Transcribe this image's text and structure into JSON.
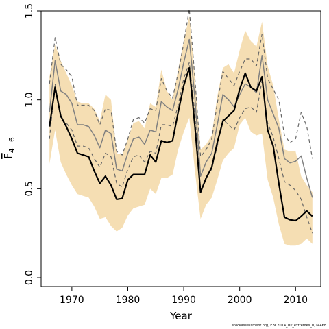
{
  "chart_data": {
    "type": "line",
    "xlabel": "Year",
    "ylabel": "F̄4−6",
    "ylabel_main": "F",
    "ylabel_sub": "4−6",
    "xlim": [
      1964.5,
      2014.5
    ],
    "ylim": [
      -0.05,
      1.5
    ],
    "xticks": [
      1970,
      1980,
      1990,
      2000,
      2010
    ],
    "xtick_labels": [
      "1970",
      "1980",
      "1990",
      "2000",
      "2010"
    ],
    "yticks": [
      0.0,
      0.5,
      1.0,
      1.5
    ],
    "ytick_labels": [
      "0.0",
      "0.5",
      "1.0",
      "1.5"
    ],
    "x": [
      1966,
      1967,
      1968,
      1969,
      1970,
      1971,
      1972,
      1973,
      1974,
      1975,
      1976,
      1977,
      1978,
      1979,
      1980,
      1981,
      1982,
      1983,
      1984,
      1985,
      1986,
      1987,
      1988,
      1989,
      1990,
      1991,
      1992,
      1993,
      1994,
      1995,
      1996,
      1997,
      1998,
      1999,
      2000,
      2001,
      2002,
      2003,
      2004,
      2005,
      2006,
      2007,
      2008,
      2009,
      2010,
      2011,
      2012,
      2013
    ],
    "band": {
      "color": "#f5deb3",
      "lower": [
        0.64,
        0.83,
        0.65,
        0.58,
        0.52,
        0.47,
        0.46,
        0.45,
        0.4,
        0.33,
        0.34,
        0.29,
        0.26,
        0.28,
        0.35,
        0.39,
        0.4,
        0.41,
        0.5,
        0.47,
        0.56,
        0.56,
        0.58,
        0.72,
        0.82,
        0.9,
        0.6,
        0.33,
        0.41,
        0.45,
        0.55,
        0.66,
        0.7,
        0.73,
        0.86,
        0.9,
        0.82,
        0.8,
        0.81,
        0.55,
        0.45,
        0.3,
        0.19,
        0.18,
        0.18,
        0.19,
        0.22,
        0.19
      ],
      "upper": [
        1.13,
        1.31,
        1.22,
        1.15,
        1.08,
        0.99,
        0.98,
        0.98,
        0.95,
        0.88,
        1.03,
        1.0,
        0.7,
        0.69,
        0.78,
        0.87,
        0.88,
        0.84,
        0.98,
        0.96,
        1.17,
        1.05,
        1.0,
        1.17,
        1.33,
        1.47,
        1.12,
        0.72,
        0.75,
        0.8,
        1.02,
        1.18,
        1.2,
        1.15,
        1.28,
        1.39,
        1.33,
        1.3,
        1.44,
        1.19,
        1.08,
        0.89,
        0.72,
        0.71,
        0.71,
        0.57,
        0.52,
        0.48
      ]
    },
    "series": [
      {
        "role": "estimate",
        "color": "#000000",
        "width": 2.2,
        "dash": "none",
        "values": [
          0.85,
          1.07,
          0.91,
          0.85,
          0.78,
          0.7,
          0.69,
          0.68,
          0.6,
          0.53,
          0.57,
          0.52,
          0.44,
          0.445,
          0.55,
          0.58,
          0.58,
          0.58,
          0.69,
          0.65,
          0.77,
          0.76,
          0.77,
          0.93,
          1.08,
          1.18,
          0.85,
          0.48,
          0.56,
          0.62,
          0.76,
          0.88,
          0.91,
          0.94,
          1.06,
          1.15,
          1.07,
          1.05,
          1.13,
          0.83,
          0.74,
          0.53,
          0.34,
          0.325,
          0.32,
          0.345,
          0.375,
          0.345
        ]
      },
      {
        "role": "previous",
        "color": "#808080",
        "width": 1.5,
        "dash": "none",
        "values": [
          0.93,
          1.22,
          1.05,
          1.03,
          0.98,
          0.86,
          0.86,
          0.85,
          0.8,
          0.73,
          0.83,
          0.81,
          0.61,
          0.6,
          0.7,
          0.78,
          0.79,
          0.75,
          0.83,
          0.82,
          0.99,
          0.96,
          0.94,
          1.06,
          1.21,
          1.34,
          1.01,
          0.57,
          0.65,
          0.7,
          0.86,
          1.03,
          1.0,
          0.96,
          1.03,
          1.09,
          1.07,
          1.04,
          1.25,
          1.0,
          0.92,
          0.84,
          0.67,
          0.645,
          0.655,
          0.685,
          0.56,
          0.45
        ]
      },
      {
        "role": "previous-upper",
        "color": "#666666",
        "width": 1.2,
        "dash": "5,4",
        "values": [
          1.09,
          1.35,
          1.2,
          1.17,
          1.13,
          0.97,
          0.97,
          0.97,
          0.94,
          0.86,
          0.95,
          0.94,
          0.71,
          0.69,
          0.78,
          0.89,
          0.9,
          0.87,
          0.95,
          0.94,
          1.12,
          1.05,
          1.01,
          1.15,
          1.32,
          1.51,
          1.12,
          0.68,
          0.72,
          0.78,
          0.98,
          1.16,
          1.12,
          1.08,
          1.16,
          1.23,
          1.23,
          1.19,
          1.37,
          1.12,
          1.06,
          1.0,
          0.8,
          0.76,
          0.78,
          0.93,
          0.85,
          0.67
        ]
      },
      {
        "role": "previous-lower",
        "color": "#666666",
        "width": 1.2,
        "dash": "5,4",
        "values": [
          0.78,
          1.09,
          0.89,
          0.87,
          0.83,
          0.74,
          0.74,
          0.73,
          0.67,
          0.62,
          0.7,
          0.68,
          0.53,
          0.51,
          0.61,
          0.68,
          0.69,
          0.65,
          0.71,
          0.7,
          0.86,
          0.86,
          0.85,
          0.97,
          1.12,
          1.21,
          0.92,
          0.49,
          0.56,
          0.61,
          0.74,
          0.89,
          0.86,
          0.83,
          0.9,
          0.95,
          0.96,
          0.93,
          1.11,
          0.87,
          0.79,
          0.67,
          0.54,
          0.52,
          0.49,
          0.44,
          0.34,
          0.25
        ]
      }
    ]
  },
  "credit": "stockassessment.org, EBC2014_DP_extremes_0, r4468"
}
